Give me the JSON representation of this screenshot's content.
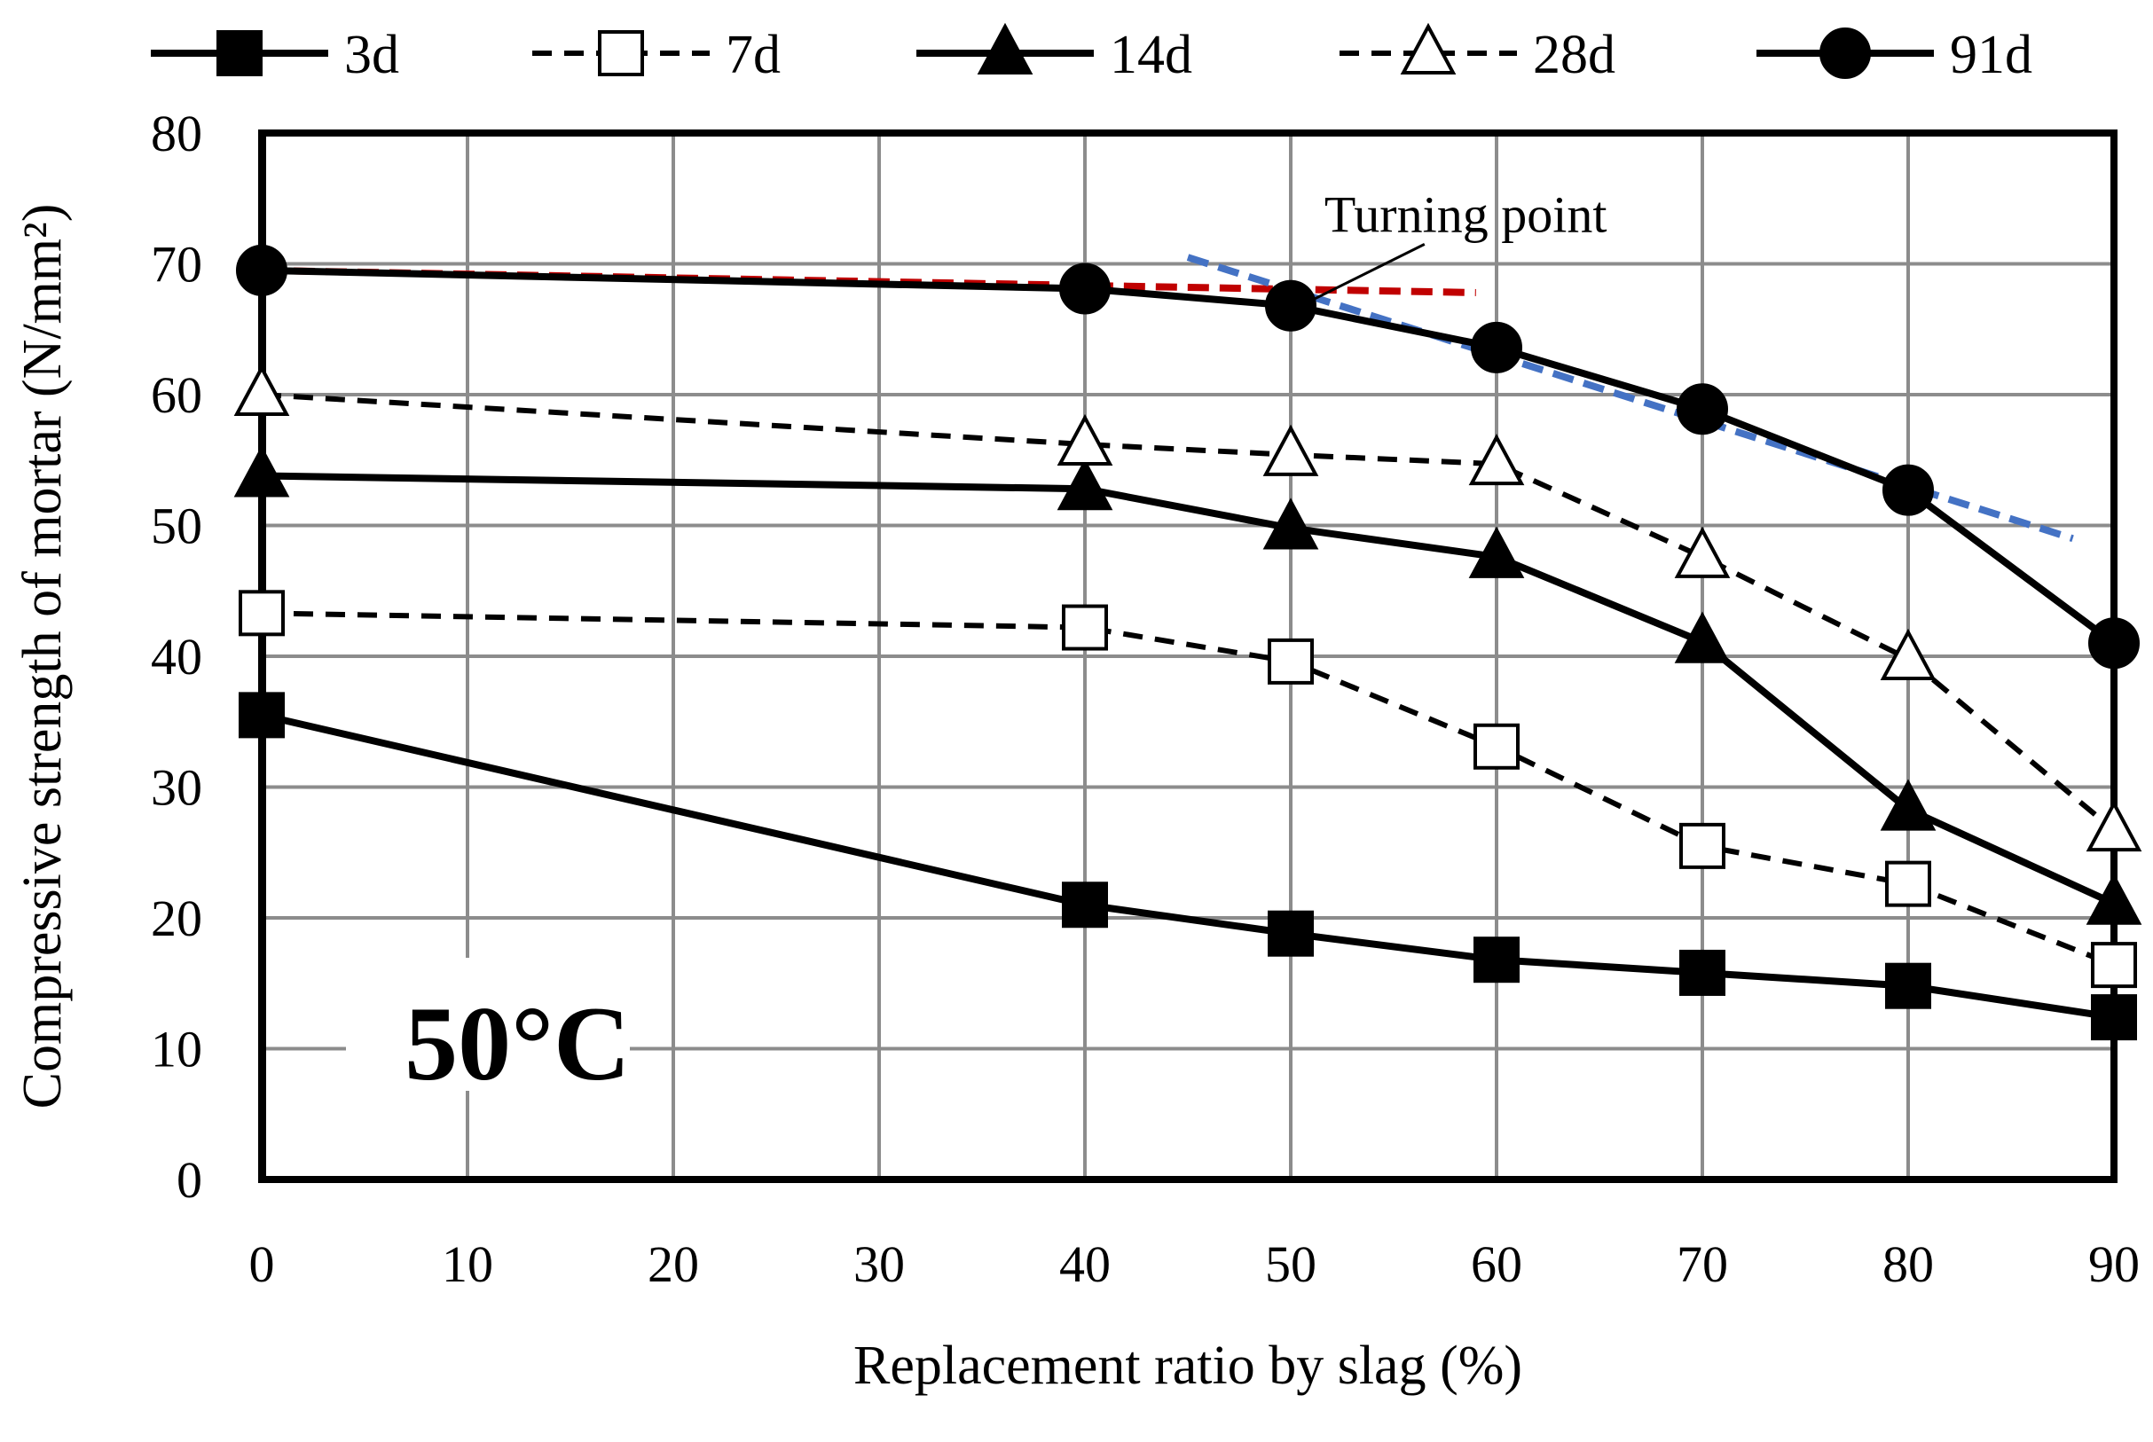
{
  "chart_data": {
    "type": "line",
    "x": [
      0,
      40,
      50,
      60,
      70,
      80,
      90
    ],
    "xticks": [
      "0",
      "10",
      "20",
      "30",
      "40",
      "50",
      "60",
      "70",
      "80",
      "90"
    ],
    "yticks": [
      "0",
      "10",
      "20",
      "30",
      "40",
      "50",
      "60",
      "70",
      "80"
    ],
    "xlim": [
      0,
      90
    ],
    "ylim": [
      0,
      80
    ],
    "xlabel": "Replacement ratio by slag (%)",
    "ylabel": "Compressive strength of mortar (N/mm²)",
    "grid": true,
    "legend_position": "top",
    "series": [
      {
        "name": "3d",
        "values": [
          35.5,
          21.0,
          18.8,
          16.8,
          15.8,
          14.8,
          12.4
        ],
        "marker": "filled-square",
        "dashed": false
      },
      {
        "name": "7d",
        "values": [
          43.3,
          42.2,
          39.6,
          33.1,
          25.5,
          22.6,
          16.4
        ],
        "marker": "open-square",
        "dashed": true
      },
      {
        "name": "14d",
        "values": [
          53.8,
          52.8,
          49.8,
          47.6,
          41.1,
          28.3,
          21.1
        ],
        "marker": "filled-triangle",
        "dashed": false
      },
      {
        "name": "28d",
        "values": [
          60.0,
          56.2,
          55.4,
          54.7,
          47.6,
          39.8,
          26.7
        ],
        "marker": "open-triangle",
        "dashed": true
      },
      {
        "name": "91d",
        "values": [
          69.5,
          68.1,
          66.8,
          63.6,
          58.9,
          52.7,
          41.0
        ],
        "marker": "filled-circle",
        "dashed": false
      }
    ],
    "trend_lines": [
      {
        "color": "#c00000",
        "from": [
          0,
          69.5
        ],
        "to": [
          59,
          67.8
        ]
      },
      {
        "color": "#4472c4",
        "from": [
          45,
          70.5
        ],
        "to": [
          88,
          49.0
        ]
      }
    ],
    "annotations": [
      {
        "text": "Turning point",
        "x": 58.5,
        "y": 73.8,
        "arrow_to": [
          51,
          67.2
        ]
      },
      {
        "text": "50°C",
        "x": 12,
        "y": 10.5
      }
    ]
  }
}
